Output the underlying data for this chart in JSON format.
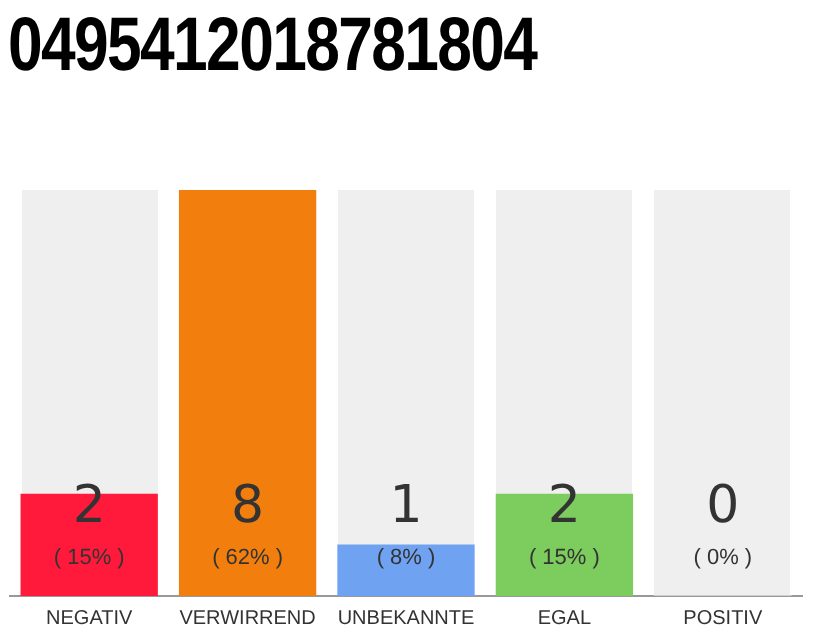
{
  "chart_data": {
    "type": "bar",
    "title": "0495412018781804",
    "categories": [
      "NEGATIV",
      "VERWIRREND",
      "UNBEKANNTE",
      "EGAL",
      "POSITIV"
    ],
    "values": [
      2,
      8,
      1,
      2,
      0
    ],
    "colors": [
      "#ff1a3c",
      "#f27e0e",
      "#6fa3f2",
      "#7ccc5e",
      "#e0e0e0"
    ],
    "value_labels": [
      "2\n( 15% )",
      "8\n( 62% )",
      "1\n( 8% )",
      "2\n( 15% )",
      "0\n( 0% )"
    ],
    "tick_labels": "x",
    "grid": false,
    "legend": false
  }
}
